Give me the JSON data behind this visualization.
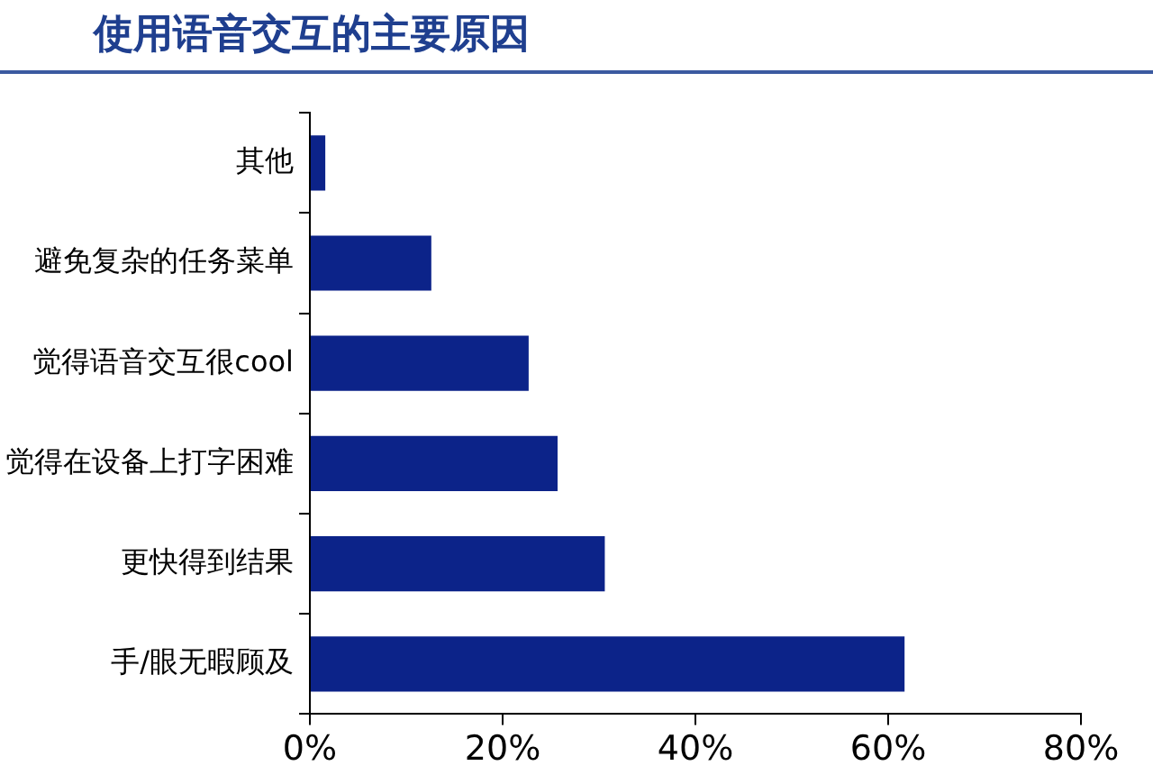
{
  "chart_data": {
    "type": "bar",
    "orientation": "horizontal",
    "title": "使用语音交互的主要原因",
    "categories": [
      "其他",
      "避免复杂的任务菜单",
      "觉得语音交互很cool",
      "觉得在设备上打字困难",
      "更快得到结果",
      "手/眼无暇顾及"
    ],
    "values": [
      1.6,
      12.6,
      22.7,
      25.7,
      30.6,
      61.7
    ],
    "color": "#0c2389",
    "xlim": [
      0,
      80
    ],
    "xticks": [
      {
        "value": 0,
        "label": "0%"
      },
      {
        "value": 20,
        "label": "20%"
      },
      {
        "value": 40,
        "label": "40%"
      },
      {
        "value": 60,
        "label": "60%"
      },
      {
        "value": 80,
        "label": "80%"
      }
    ],
    "grid": false
  }
}
